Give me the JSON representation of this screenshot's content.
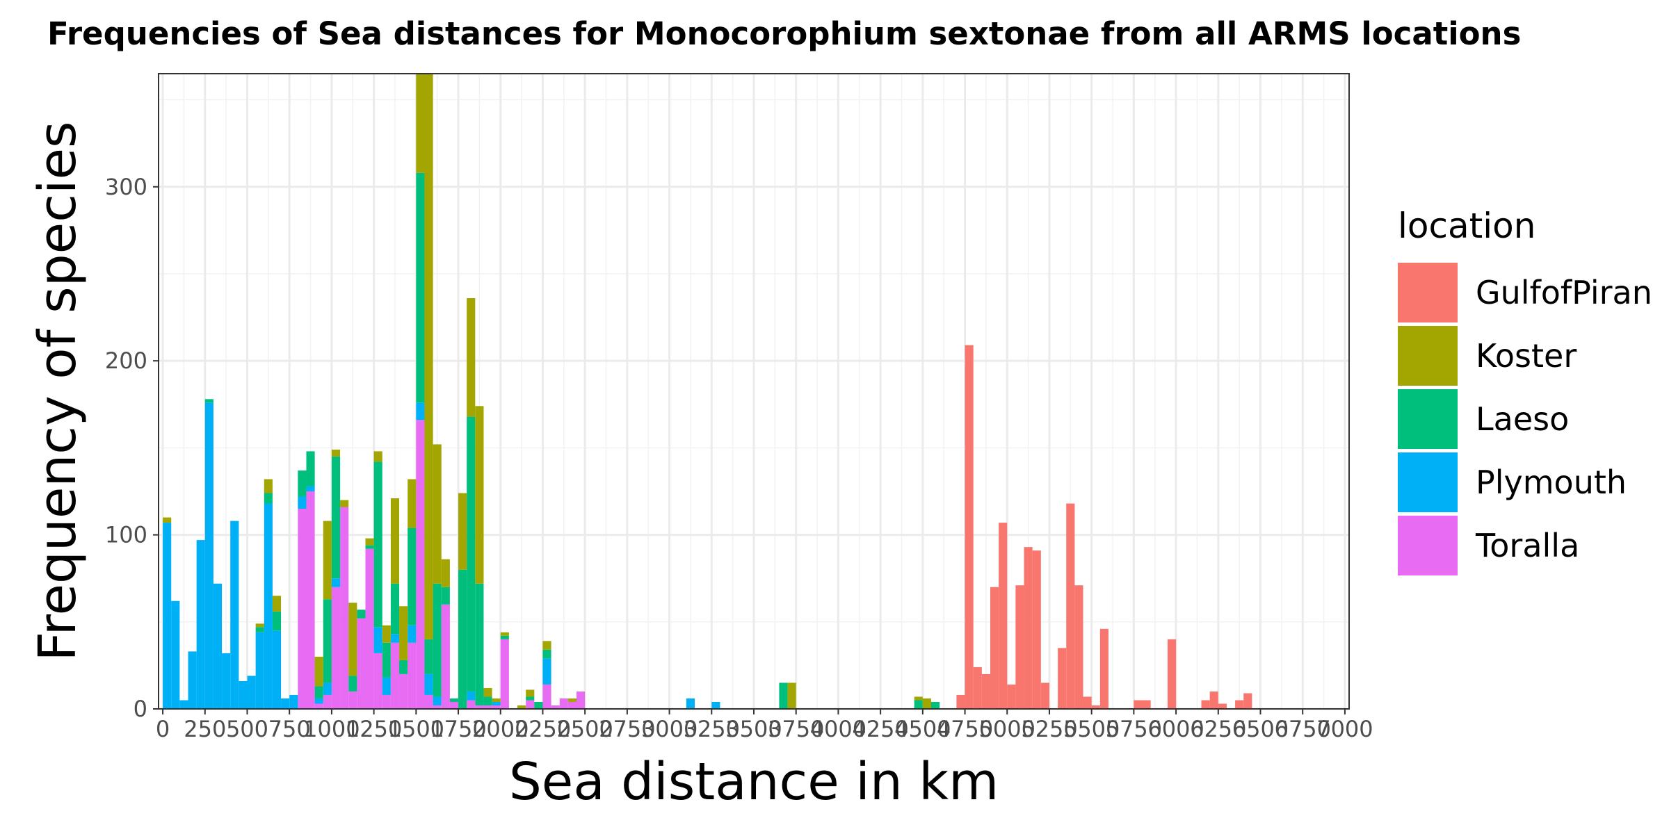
{
  "chart_data": {
    "type": "bar",
    "stacked": true,
    "title": "Frequencies of Sea distances for Monocorophium sextonae from all ARMS locations",
    "xlabel": "Sea distance in km",
    "ylabel": "Frequency of species",
    "xlim": [
      -25,
      7025
    ],
    "ylim": [
      0,
      365
    ],
    "bin_width": 50,
    "x_ticks": [
      0,
      250,
      500,
      750,
      1000,
      1250,
      1500,
      1750,
      2000,
      2250,
      2500,
      2750,
      3000,
      3250,
      3500,
      3750,
      4000,
      4250,
      4500,
      4750,
      5000,
      5250,
      5500,
      5750,
      6000,
      6250,
      6500,
      6750,
      7000
    ],
    "x_tick_labels": [
      "0",
      "250",
      "500",
      "750",
      "1000",
      "1250",
      "1500",
      "1750",
      "2000",
      "2250",
      "2500",
      "2750",
      "3000",
      "3250",
      "3500",
      "3750",
      "4000",
      "4250",
      "4500",
      "4750",
      "5000",
      "5250",
      "5500",
      "5750",
      "6000",
      "6250",
      "6500",
      "6750",
      "7000"
    ],
    "y_ticks": [
      0,
      100,
      200,
      300
    ],
    "y_tick_labels": [
      "0",
      "100",
      "200",
      "300"
    ],
    "grid": true,
    "legend_title": "location",
    "legend_position": "right",
    "series": [
      {
        "name": "GulfofPiran",
        "color": "#F8766D",
        "bins": [
          [
            4700,
            8
          ],
          [
            4750,
            209
          ],
          [
            4800,
            24
          ],
          [
            4850,
            20
          ],
          [
            4900,
            70
          ],
          [
            4950,
            107
          ],
          [
            5000,
            14
          ],
          [
            5050,
            71
          ],
          [
            5100,
            93
          ],
          [
            5150,
            91
          ],
          [
            5200,
            15
          ],
          [
            5300,
            35
          ],
          [
            5350,
            118
          ],
          [
            5400,
            71
          ],
          [
            5450,
            7
          ],
          [
            5500,
            2
          ],
          [
            5550,
            46
          ],
          [
            5750,
            5
          ],
          [
            5800,
            5
          ],
          [
            5950,
            40
          ],
          [
            6150,
            5
          ],
          [
            6200,
            10
          ],
          [
            6250,
            3
          ],
          [
            6350,
            5
          ],
          [
            6400,
            9
          ]
        ]
      },
      {
        "name": "Koster",
        "color": "#A3A500",
        "bins": [
          [
            0,
            3
          ],
          [
            550,
            2
          ],
          [
            600,
            8
          ],
          [
            650,
            9
          ],
          [
            900,
            17
          ],
          [
            950,
            45
          ],
          [
            1000,
            4
          ],
          [
            1050,
            4
          ],
          [
            1100,
            42
          ],
          [
            1200,
            4
          ],
          [
            1250,
            6
          ],
          [
            1300,
            10
          ],
          [
            1350,
            49
          ],
          [
            1400,
            31
          ],
          [
            1450,
            28
          ],
          [
            1500,
            83
          ],
          [
            1550,
            345
          ],
          [
            1600,
            80
          ],
          [
            1650,
            16
          ],
          [
            1750,
            44
          ],
          [
            1800,
            68
          ],
          [
            1850,
            102
          ],
          [
            1900,
            5
          ],
          [
            1950,
            2
          ],
          [
            2000,
            2
          ],
          [
            2100,
            2
          ],
          [
            2150,
            4
          ],
          [
            2250,
            5
          ],
          [
            2400,
            2
          ],
          [
            3700,
            15
          ],
          [
            4450,
            2
          ],
          [
            4500,
            6
          ]
        ]
      },
      {
        "name": "Laeso",
        "color": "#00BF7D",
        "bins": [
          [
            250,
            2
          ],
          [
            550,
            3
          ],
          [
            600,
            6
          ],
          [
            650,
            11
          ],
          [
            800,
            15
          ],
          [
            850,
            20
          ],
          [
            900,
            7
          ],
          [
            950,
            48
          ],
          [
            1000,
            70
          ],
          [
            1100,
            9
          ],
          [
            1150,
            5
          ],
          [
            1200,
            2
          ],
          [
            1250,
            95
          ],
          [
            1300,
            20
          ],
          [
            1350,
            29
          ],
          [
            1400,
            8
          ],
          [
            1450,
            56
          ],
          [
            1500,
            132
          ],
          [
            1550,
            20
          ],
          [
            1600,
            65
          ],
          [
            1650,
            10
          ],
          [
            1700,
            2
          ],
          [
            1750,
            80
          ],
          [
            1800,
            158
          ],
          [
            1850,
            70
          ],
          [
            1900,
            5
          ],
          [
            2000,
            2
          ],
          [
            2150,
            2
          ],
          [
            2200,
            4
          ],
          [
            2250,
            5
          ],
          [
            3650,
            15
          ],
          [
            4450,
            5
          ],
          [
            4550,
            4
          ]
        ]
      },
      {
        "name": "Plymouth",
        "color": "#00B0F6",
        "bins": [
          [
            0,
            107
          ],
          [
            50,
            62
          ],
          [
            100,
            5
          ],
          [
            150,
            33
          ],
          [
            200,
            97
          ],
          [
            250,
            176
          ],
          [
            300,
            72
          ],
          [
            350,
            32
          ],
          [
            400,
            108
          ],
          [
            450,
            16
          ],
          [
            500,
            19
          ],
          [
            550,
            44
          ],
          [
            600,
            118
          ],
          [
            650,
            45
          ],
          [
            700,
            6
          ],
          [
            750,
            8
          ],
          [
            800,
            7
          ],
          [
            850,
            3
          ],
          [
            900,
            3
          ],
          [
            950,
            7
          ],
          [
            1000,
            5
          ],
          [
            1250,
            15
          ],
          [
            1300,
            10
          ],
          [
            1350,
            5
          ],
          [
            1450,
            10
          ],
          [
            1500,
            10
          ],
          [
            1550,
            12
          ],
          [
            1600,
            5
          ],
          [
            1800,
            5
          ],
          [
            1950,
            2
          ],
          [
            2250,
            15
          ],
          [
            3100,
            6
          ],
          [
            3250,
            4
          ]
        ]
      },
      {
        "name": "Toralla",
        "color": "#E76BF3",
        "bins": [
          [
            800,
            115
          ],
          [
            850,
            125
          ],
          [
            900,
            3
          ],
          [
            950,
            8
          ],
          [
            1000,
            70
          ],
          [
            1050,
            116
          ],
          [
            1100,
            10
          ],
          [
            1150,
            52
          ],
          [
            1200,
            92
          ],
          [
            1250,
            32
          ],
          [
            1300,
            8
          ],
          [
            1350,
            38
          ],
          [
            1400,
            20
          ],
          [
            1450,
            38
          ],
          [
            1500,
            166
          ],
          [
            1550,
            8
          ],
          [
            1600,
            2
          ],
          [
            1650,
            60
          ],
          [
            1700,
            4
          ],
          [
            1800,
            5
          ],
          [
            1850,
            2
          ],
          [
            1900,
            2
          ],
          [
            1950,
            2
          ],
          [
            2000,
            40
          ],
          [
            2150,
            5
          ],
          [
            2250,
            14
          ],
          [
            2300,
            2
          ],
          [
            2350,
            6
          ],
          [
            2400,
            4
          ],
          [
            2450,
            10
          ]
        ]
      }
    ]
  }
}
